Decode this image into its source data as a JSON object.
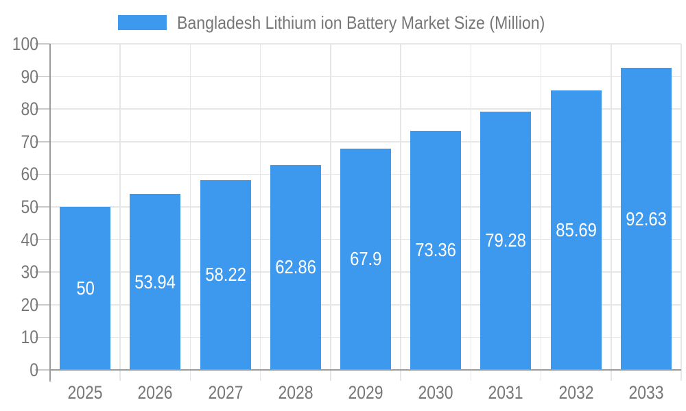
{
  "chart_data": {
    "type": "bar",
    "legend": {
      "label": "Bangladesh Lithium ion Battery Market Size (Million)",
      "position": "top"
    },
    "categories": [
      "2025",
      "2026",
      "2027",
      "2028",
      "2029",
      "2030",
      "2031",
      "2032",
      "2033"
    ],
    "values": [
      50,
      53.94,
      58.22,
      62.86,
      67.9,
      73.36,
      79.28,
      85.69,
      92.63
    ],
    "value_labels": [
      "50",
      "53.94",
      "58.22",
      "62.86",
      "67.9",
      "73.36",
      "79.28",
      "85.69",
      "92.63"
    ],
    "xlabel": "",
    "ylabel": "",
    "ylim": [
      0,
      100
    ],
    "ytick_interval": 10,
    "ytick_labels": [
      "0",
      "10",
      "20",
      "30",
      "40",
      "50",
      "60",
      "70",
      "80",
      "90",
      "100"
    ],
    "grid": "on",
    "bar_labels_position": "inside-center",
    "colors": {
      "bar": "#3d99ee",
      "bar_label_text": "#ffffff",
      "axis_text": "#777777",
      "legend_text": "#777777",
      "grid_line": "#e6e6e6",
      "tick_line": "#c9c9c9",
      "axis_line": "#9b9b9b",
      "background": "#ffffff"
    }
  }
}
